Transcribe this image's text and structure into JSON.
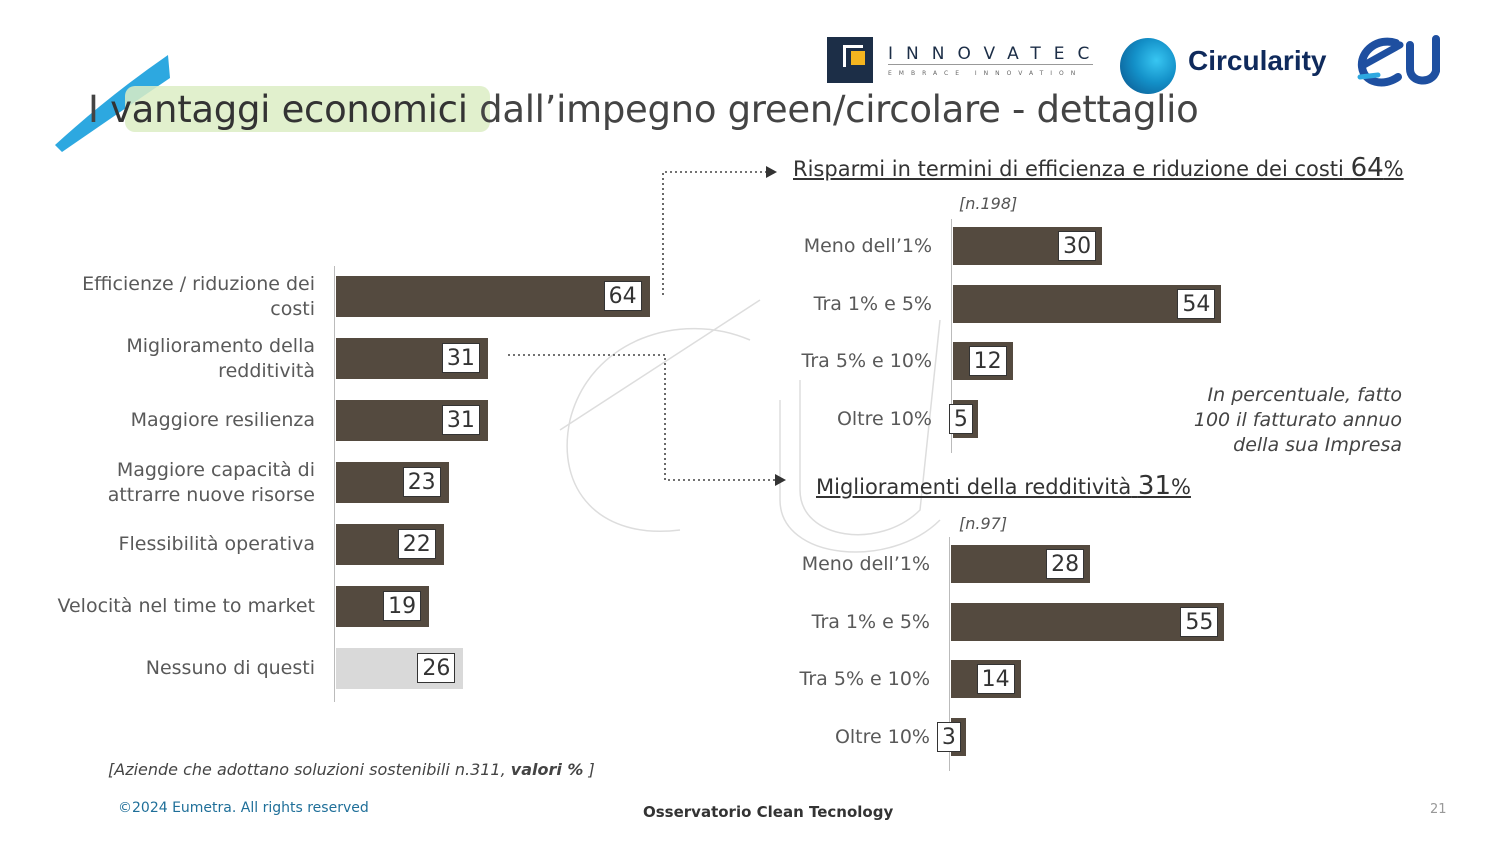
{
  "title": {
    "highlight_pre": "I ",
    "highlight": "vantaggi economici",
    "rest": " dall’impegno green/circolare - dettaglio"
  },
  "logos": {
    "innovatec_name": "INNOVATEC",
    "innovatec_tagline": "EMBRACE INNOVATION",
    "circularity_name": "Circularity",
    "eu_mark": "eu"
  },
  "colors": {
    "bar": "#544a3f",
    "bar_none": "#d9d9d9",
    "highlight": "#dcedc4",
    "swoosh": "#2da8e0",
    "copyright": "#1f6f99"
  },
  "chart_data": [
    {
      "type": "bar",
      "orientation": "horizontal",
      "categories": [
        "Efficienze / riduzione dei costi",
        "Miglioramento della redditività",
        "Maggiore resilienza",
        "Maggiore capacità di attrarre nuove risorse",
        "Flessibilità operativa",
        "Velocità nel time to market",
        "Nessuno di questi"
      ],
      "category_lines": [
        [
          "Efficienze / riduzione dei",
          "costi"
        ],
        [
          "Miglioramento della",
          "redditività"
        ],
        [
          "Maggiore resilienza"
        ],
        [
          "Maggiore capacità di",
          "attrarre nuove risorse"
        ],
        [
          "Flessibilità operativa"
        ],
        [
          "Velocità nel time to market"
        ],
        [
          "Nessuno di questi"
        ]
      ],
      "values": [
        64,
        31,
        31,
        23,
        22,
        19,
        26
      ],
      "highlight_last_grey": true,
      "source_note_pre": "[Aziende che adottano soluzioni sostenibili n.311, ",
      "source_note_bold": "valori %",
      "source_note_post": " ]"
    },
    {
      "type": "bar",
      "orientation": "horizontal",
      "title": "Risparmi in termini di efficienza e riduzione dei costi",
      "title_value": "64",
      "title_unit": "%",
      "sample": "[n.198]",
      "categories": [
        "Meno dell’1%",
        "Tra 1% e 5%",
        "Tra 5% e 10%",
        "Oltre 10%"
      ],
      "values": [
        30,
        54,
        12,
        5
      ]
    },
    {
      "type": "bar",
      "orientation": "horizontal",
      "title": "Miglioramenti della redditività",
      "title_value": "31",
      "title_unit": "%",
      "sample": "[n.97]",
      "categories": [
        "Meno dell’1%",
        "Tra 1% e 5%",
        "Tra 5% e 10%",
        "Oltre 10%"
      ],
      "values": [
        28,
        55,
        14,
        3
      ]
    }
  ],
  "note": "In percentuale, fatto 100 il fatturato annuo della sua Impresa",
  "footer": {
    "copyright": "©2024 Eumetra. All rights reserved",
    "center": "Osservatorio Clean Tecnology",
    "page": "21"
  }
}
